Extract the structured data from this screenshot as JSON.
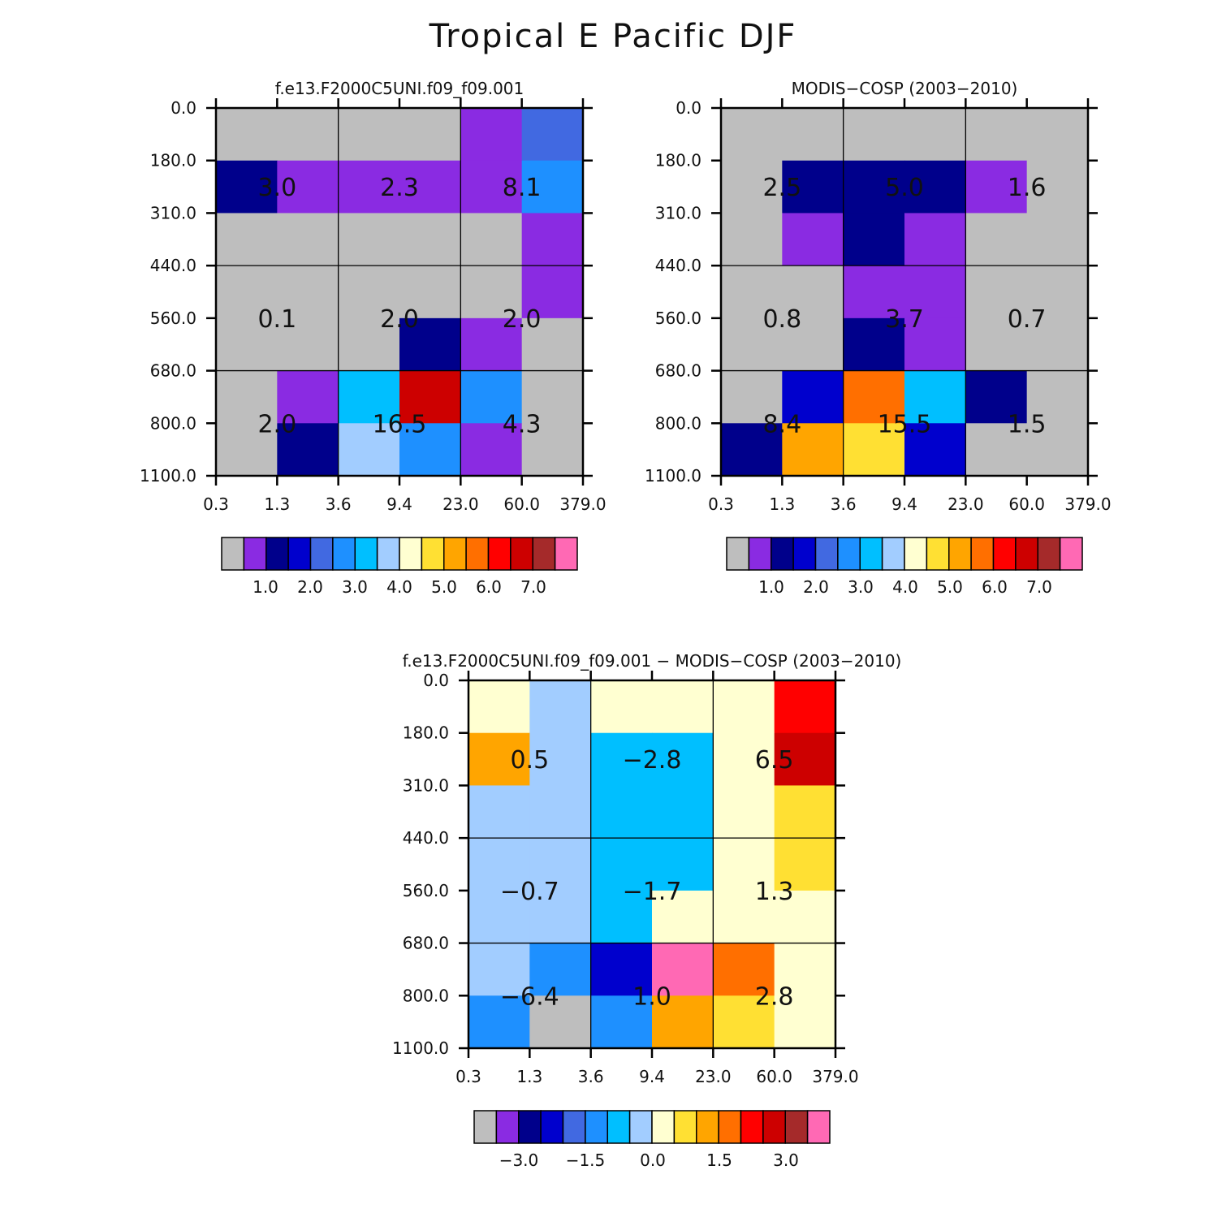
{
  "title": "Tropical E Pacific DJF",
  "levels_cmap": [
    "#bebebe",
    "#8a2be2",
    "#00008b",
    "#0000cd",
    "#4169e1",
    "#1e90ff",
    "#00bfff",
    "#a2cdff",
    "#ffffd1",
    "#ffe033",
    "#ffa500",
    "#ff6f00",
    "#ff0000",
    "#cd0000",
    "#a52a2a",
    "#ff69b4"
  ],
  "chart_data": [
    {
      "type": "heatmap",
      "title": "f.e13.F2000C5UNI.f09_f09.001",
      "x_ticks": [
        "0.3",
        "1.3",
        "3.6",
        "9.4",
        "23.0",
        "60.0",
        "379.0"
      ],
      "y_ticks": [
        "0.0",
        "180.0",
        "310.0",
        "440.0",
        "560.0",
        "680.0",
        "800.0",
        "1100.0"
      ],
      "cell_color_index": [
        [
          0,
          0,
          0,
          0,
          1,
          4
        ],
        [
          2,
          1,
          1,
          1,
          1,
          5
        ],
        [
          0,
          0,
          0,
          0,
          0,
          1
        ],
        [
          0,
          0,
          0,
          0,
          0,
          1
        ],
        [
          0,
          0,
          0,
          2,
          1,
          0
        ],
        [
          0,
          1,
          6,
          13,
          5,
          0
        ],
        [
          0,
          2,
          7,
          5,
          1,
          0
        ]
      ],
      "annotations": [
        {
          "col": 0,
          "row": 0,
          "text": "3.0"
        },
        {
          "col": 1,
          "row": 0,
          "text": "2.3"
        },
        {
          "col": 2,
          "row": 0,
          "text": "8.1"
        },
        {
          "col": 0,
          "row": 1,
          "text": "0.1"
        },
        {
          "col": 1,
          "row": 1,
          "text": "2.0"
        },
        {
          "col": 2,
          "row": 1,
          "text": "2.0"
        },
        {
          "col": 0,
          "row": 2,
          "text": "2.0"
        },
        {
          "col": 1,
          "row": 2,
          "text": "16.5"
        },
        {
          "col": 2,
          "row": 2,
          "text": "4.3"
        }
      ],
      "colorbar_labels": [
        "1.0",
        "2.0",
        "3.0",
        "4.0",
        "5.0",
        "6.0",
        "7.0"
      ]
    },
    {
      "type": "heatmap",
      "title": "MODIS-COSP (2003-2010)",
      "x_ticks": [
        "0.3",
        "1.3",
        "3.6",
        "9.4",
        "23.0",
        "60.0",
        "379.0"
      ],
      "y_ticks": [
        "0.0",
        "180.0",
        "310.0",
        "440.0",
        "560.0",
        "680.0",
        "800.0",
        "1100.0"
      ],
      "cell_color_index": [
        [
          0,
          0,
          0,
          0,
          0,
          0
        ],
        [
          0,
          2,
          2,
          2,
          1,
          0
        ],
        [
          0,
          1,
          2,
          1,
          0,
          0
        ],
        [
          0,
          0,
          1,
          1,
          0,
          0
        ],
        [
          0,
          0,
          2,
          1,
          0,
          0
        ],
        [
          0,
          3,
          11,
          6,
          2,
          0
        ],
        [
          2,
          10,
          9,
          3,
          0,
          0
        ]
      ],
      "annotations": [
        {
          "col": 0,
          "row": 0,
          "text": "2.5"
        },
        {
          "col": 1,
          "row": 0,
          "text": "5.0"
        },
        {
          "col": 2,
          "row": 0,
          "text": "1.6"
        },
        {
          "col": 0,
          "row": 1,
          "text": "0.8"
        },
        {
          "col": 1,
          "row": 1,
          "text": "3.7"
        },
        {
          "col": 2,
          "row": 1,
          "text": "0.7"
        },
        {
          "col": 0,
          "row": 2,
          "text": "8.4"
        },
        {
          "col": 1,
          "row": 2,
          "text": "15.5"
        },
        {
          "col": 2,
          "row": 2,
          "text": "1.5"
        }
      ],
      "colorbar_labels": [
        "1.0",
        "2.0",
        "3.0",
        "4.0",
        "5.0",
        "6.0",
        "7.0"
      ]
    },
    {
      "type": "heatmap",
      "title": "f.e13.F2000C5UNI.f09_f09.001 - MODIS-COSP (2003-2010)",
      "x_ticks": [
        "0.3",
        "1.3",
        "3.6",
        "9.4",
        "23.0",
        "60.0",
        "379.0"
      ],
      "y_ticks": [
        "0.0",
        "180.0",
        "310.0",
        "440.0",
        "560.0",
        "680.0",
        "800.0",
        "1100.0"
      ],
      "cell_color_index": [
        [
          8,
          7,
          8,
          8,
          8,
          12
        ],
        [
          10,
          7,
          6,
          6,
          8,
          13
        ],
        [
          7,
          7,
          6,
          6,
          8,
          9
        ],
        [
          7,
          7,
          6,
          6,
          8,
          9
        ],
        [
          7,
          7,
          6,
          8,
          8,
          8
        ],
        [
          7,
          5,
          3,
          15,
          11,
          8
        ],
        [
          5,
          0,
          5,
          10,
          9,
          8
        ]
      ],
      "annotations": [
        {
          "col": 0,
          "row": 0,
          "text": "0.5"
        },
        {
          "col": 1,
          "row": 0,
          "text": "-2.8"
        },
        {
          "col": 2,
          "row": 0,
          "text": "6.5"
        },
        {
          "col": 0,
          "row": 1,
          "text": "-0.7"
        },
        {
          "col": 1,
          "row": 1,
          "text": "-1.7"
        },
        {
          "col": 2,
          "row": 1,
          "text": "1.3"
        },
        {
          "col": 0,
          "row": 2,
          "text": "-6.4"
        },
        {
          "col": 1,
          "row": 2,
          "text": "1.0"
        },
        {
          "col": 2,
          "row": 2,
          "text": "2.8"
        }
      ],
      "colorbar_labels": [
        "-3.0",
        "-1.5",
        "0.0",
        "1.5",
        "3.0"
      ]
    }
  ]
}
